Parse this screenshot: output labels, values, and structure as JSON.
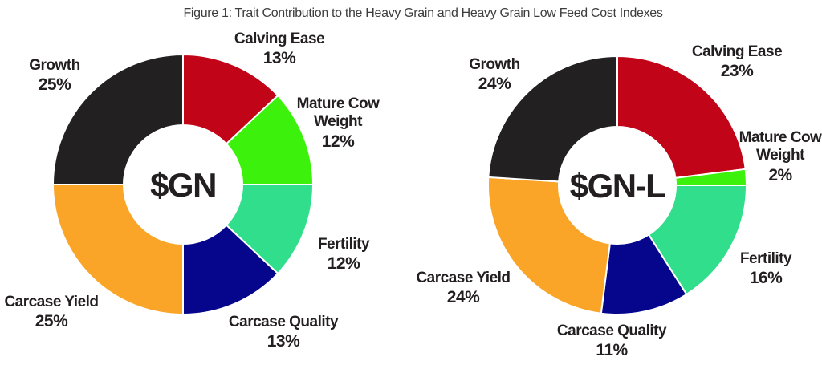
{
  "title": "Figure 1: Trait Contribution to the Heavy Grain and Heavy Grain Low Feed Cost Indexes",
  "text_color": "#231f20",
  "title_color": "#3d3d3d",
  "separator_color": "#ffffff",
  "chart_data": [
    {
      "type": "pie",
      "subtype": "donut",
      "title": "$GN",
      "start_angle": "12 o'clock, clockwise",
      "legend_position": "labels around donut",
      "categories": [
        "Calving Ease",
        "Mature Cow Weight",
        "Fertility",
        "Carcase Quality",
        "Carcase Yield",
        "Growth"
      ],
      "values": [
        13,
        12,
        12,
        13,
        25,
        25
      ],
      "labels": [
        "13%",
        "12%",
        "12%",
        "13%",
        "25%",
        "25%"
      ],
      "colors": [
        "#c10418",
        "#3cf20c",
        "#31de8c",
        "#06068c",
        "#faa528",
        "#232021"
      ]
    },
    {
      "type": "pie",
      "subtype": "donut",
      "title": "$GN-L",
      "start_angle": "12 o'clock, clockwise",
      "legend_position": "labels around donut",
      "categories": [
        "Calving Ease",
        "Mature Cow Weight",
        "Fertility",
        "Carcase Quality",
        "Carcase Yield",
        "Growth"
      ],
      "values": [
        23,
        2,
        16,
        11,
        24,
        24
      ],
      "labels": [
        "23%",
        "2%",
        "16%",
        "11%",
        "24%",
        "24%"
      ],
      "colors": [
        "#c10418",
        "#3cf20c",
        "#31de8c",
        "#06068c",
        "#faa528",
        "#232021"
      ]
    }
  ]
}
